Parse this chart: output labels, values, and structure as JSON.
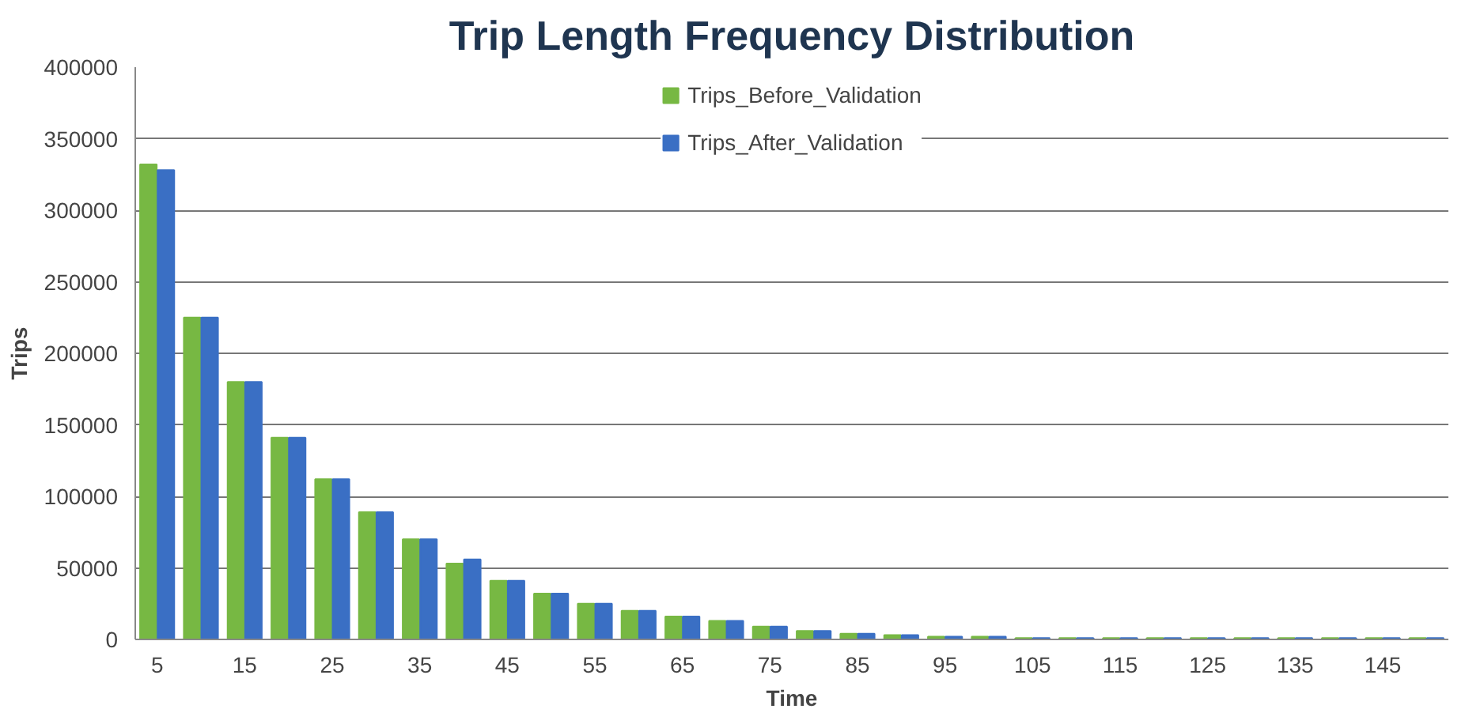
{
  "chart_data": {
    "type": "bar",
    "title": "Trip Length Frequency Distribution",
    "xlabel": "Time",
    "ylabel": "Trips",
    "categories": [
      "5",
      null,
      "15",
      null,
      "25",
      null,
      "35",
      null,
      "45",
      null,
      "55",
      null,
      "65",
      null,
      "75",
      null,
      "85",
      null,
      "95",
      null,
      "105",
      null,
      "115",
      null,
      "125",
      null,
      "135",
      null,
      "145",
      null
    ],
    "series": [
      {
        "name": "Trips_Before_Validation",
        "color": "#77b843",
        "values": [
          332000,
          225000,
          180000,
          141000,
          112000,
          89000,
          70000,
          53000,
          41000,
          32000,
          25000,
          20000,
          16000,
          13000,
          9000,
          6000,
          4000,
          3000,
          2000,
          2000,
          1000,
          1000,
          1000,
          1000,
          1000,
          1000,
          1000,
          1000,
          1000,
          1000
        ]
      },
      {
        "name": "Trips_After_Validation",
        "color": "#3a6fc4",
        "values": [
          328000,
          225000,
          180000,
          141000,
          112000,
          89000,
          70000,
          56000,
          41000,
          32000,
          25000,
          20000,
          16000,
          13000,
          9000,
          6000,
          4000,
          3000,
          2000,
          2000,
          1000,
          1000,
          1000,
          1000,
          1000,
          1000,
          1000,
          1000,
          1000,
          1000
        ]
      }
    ],
    "ylim": [
      0,
      400000
    ],
    "yticks": [
      0,
      50000,
      100000,
      150000,
      200000,
      250000,
      300000,
      350000,
      400000
    ],
    "grid": "y",
    "legend": "top"
  }
}
